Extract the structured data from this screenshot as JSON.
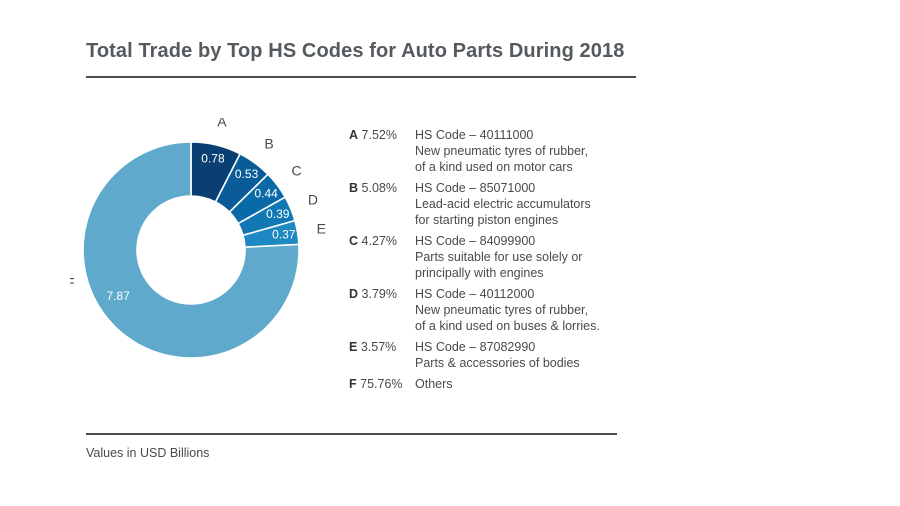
{
  "title": "Total Trade by Top HS Codes for Auto Parts During 2018",
  "footnote": "Values in USD Billions",
  "chart_data": {
    "type": "pie",
    "variant": "donut",
    "categories": [
      "A",
      "B",
      "C",
      "D",
      "E",
      "F"
    ],
    "values": [
      0.78,
      0.53,
      0.44,
      0.39,
      0.37,
      7.87
    ],
    "value_labels": [
      "0.78",
      "0.53",
      "0.44",
      "0.39",
      "0.37",
      "7.87"
    ],
    "colors": [
      "#0a3f73",
      "#0a5c99",
      "#0a6aa8",
      "#1278b4",
      "#1d88c2",
      "#5fa9cc"
    ],
    "legend_placement": "right"
  },
  "legend": [
    {
      "key": "A",
      "pct": "7.52%",
      "lines": [
        "HS Code – 40111000",
        "New pneumatic tyres of rubber,",
        "of a kind used on motor cars"
      ]
    },
    {
      "key": "B",
      "pct": "5.08%",
      "lines": [
        "HS Code – 85071000",
        "Lead-acid electric accumulators",
        "for starting piston engines"
      ]
    },
    {
      "key": "C",
      "pct": "4.27%",
      "lines": [
        "HS Code – 84099900",
        "Parts suitable for use solely or",
        "principally with engines"
      ]
    },
    {
      "key": "D",
      "pct": "3.79%",
      "lines": [
        "HS Code – 40112000",
        "New pneumatic tyres of rubber,",
        "of a kind used on buses & lorries."
      ]
    },
    {
      "key": "E",
      "pct": "3.57%",
      "lines": [
        "HS Code – 87082990",
        "Parts & accessories of bodies"
      ]
    },
    {
      "key": "F",
      "pct": "75.76%",
      "lines": [
        "Others"
      ]
    }
  ]
}
